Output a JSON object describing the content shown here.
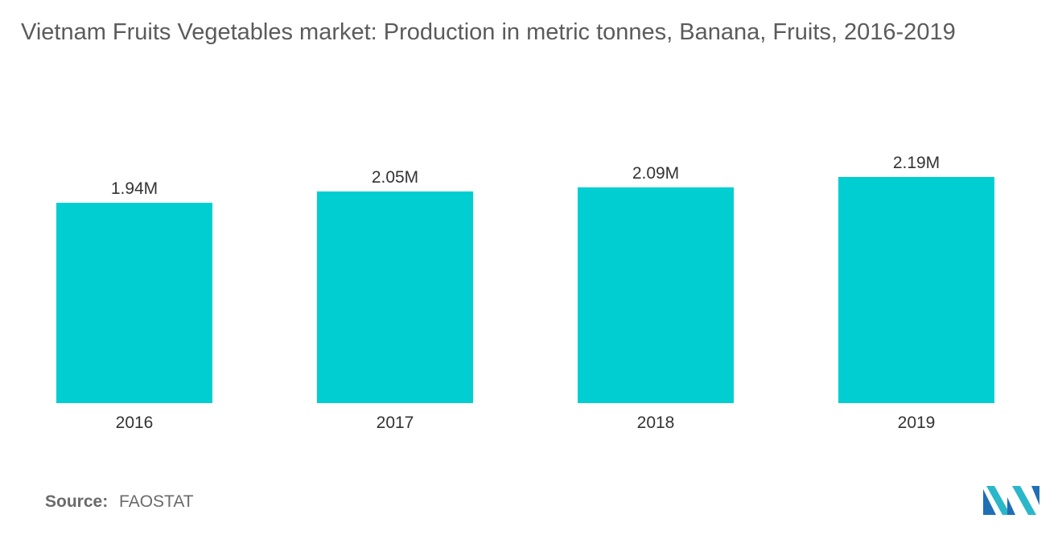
{
  "chart_data": {
    "type": "bar",
    "title": "Vietnam Fruits  Vegetables market: Production in metric tonnes, Banana, Fruits, 2016-2019",
    "categories": [
      "2016",
      "2017",
      "2018",
      "2019"
    ],
    "values": [
      1.94,
      2.05,
      2.09,
      2.19
    ],
    "value_labels": [
      "1.94M",
      "2.05M",
      "2.09M",
      "2.19M"
    ],
    "unit": "M",
    "xlabel": "",
    "ylabel": "",
    "ylim": [
      0,
      2.19
    ],
    "grid": false,
    "bar_color": "#00ced1"
  },
  "source": {
    "label": "Source:",
    "value": "FAOSTAT"
  },
  "logo": {
    "icon": "mordor-intelligence-logo-icon",
    "colors": [
      "#1f6fb5",
      "#2ab7c9"
    ]
  }
}
